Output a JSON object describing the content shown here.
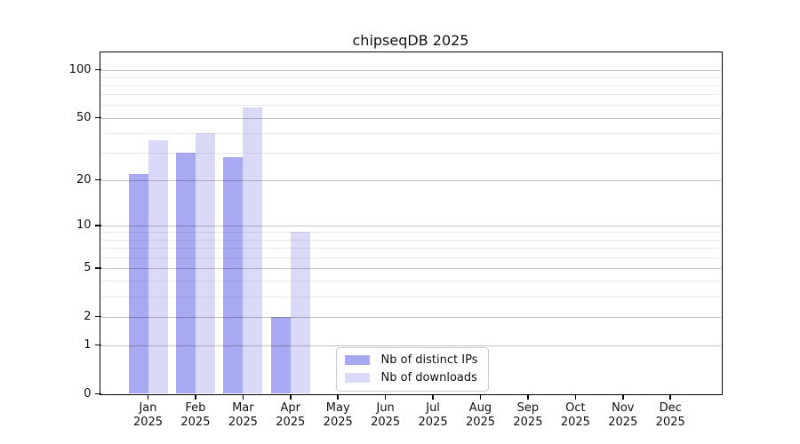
{
  "chart_data": {
    "type": "bar",
    "title": "chipseqDB 2025",
    "year_label": "2025",
    "categories": [
      "Jan",
      "Feb",
      "Mar",
      "Apr",
      "May",
      "Jun",
      "Jul",
      "Aug",
      "Sep",
      "Oct",
      "Nov",
      "Dec"
    ],
    "series": [
      {
        "name": "Nb of distinct IPs",
        "color": "#a9a9f1",
        "values": [
          22,
          30,
          28,
          2,
          0,
          0,
          0,
          0,
          0,
          0,
          0,
          0
        ]
      },
      {
        "name": "Nb of downloads",
        "color": "#dadaf8",
        "values": [
          36,
          40,
          58,
          9,
          0,
          0,
          0,
          0,
          0,
          0,
          0,
          0
        ]
      }
    ],
    "y_axis": {
      "scale": "log10(1+y)",
      "tick_values": [
        0,
        1,
        2,
        5,
        10,
        20,
        50,
        100
      ],
      "tick_labels": [
        "0",
        "1",
        "2",
        "5",
        "10",
        "20",
        "50",
        "100"
      ],
      "minor_gridline_values": [
        3,
        4,
        6,
        7,
        8,
        9,
        30,
        40,
        60,
        70,
        80,
        90
      ],
      "ylim": [
        0,
        129
      ]
    },
    "legend": {
      "position": "lower center inside"
    },
    "grid": true
  },
  "colors": {
    "bar_distinct_ips": "#a9a9f1",
    "bar_downloads": "#dadaf8",
    "grid_major": "#c3c3c3",
    "grid_minor": "#eaeaea",
    "axis": "#000000",
    "background": "#ffffff"
  }
}
